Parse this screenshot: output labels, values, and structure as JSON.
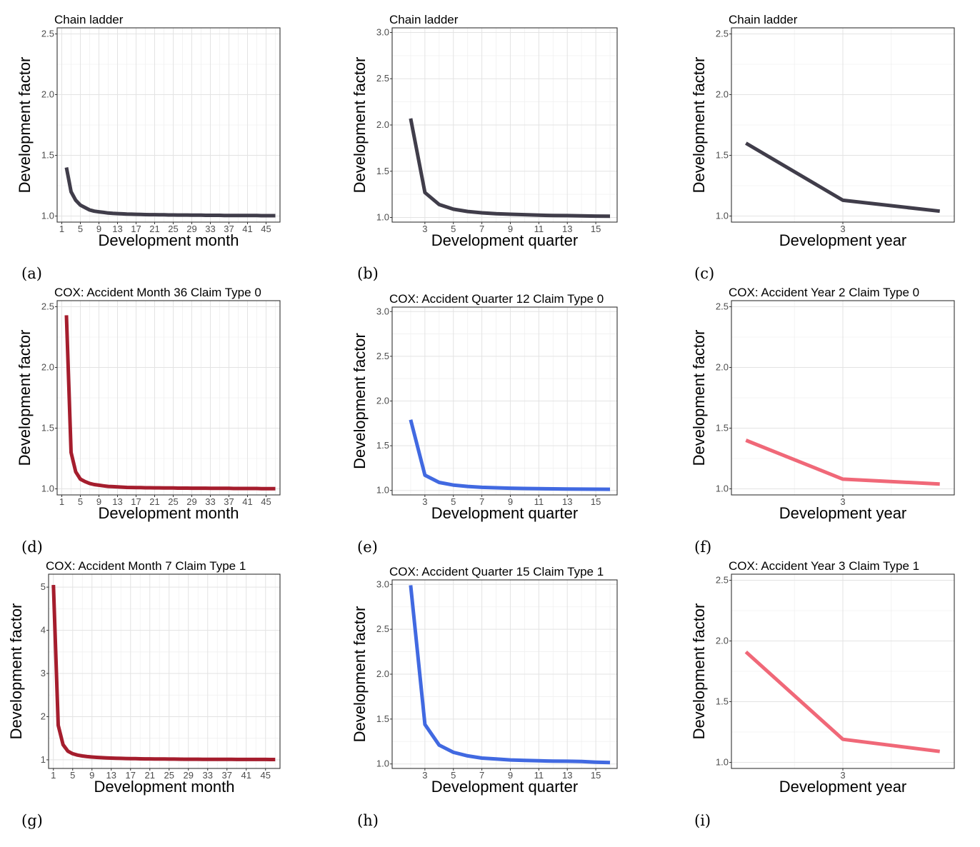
{
  "chart_data": [
    {
      "type": "line",
      "panel_caption": "(a)",
      "title": "Chain ladder",
      "xlabel": "Development month",
      "ylabel": "Development factor",
      "xlim": [
        0,
        48
      ],
      "ylim": [
        0.95,
        2.55
      ],
      "xticks": [
        1,
        5,
        9,
        13,
        17,
        21,
        25,
        29,
        33,
        37,
        41,
        45
      ],
      "yticks": [
        1.0,
        1.5,
        2.0,
        2.5
      ],
      "ytick_labels": [
        "1.0",
        "1.5",
        "2.0",
        "2.5"
      ],
      "color": "#403d4a",
      "grid": true,
      "x": [
        2,
        3,
        4,
        5,
        6,
        7,
        8,
        9,
        10,
        11,
        12,
        13,
        14,
        15,
        16,
        17,
        18,
        19,
        20,
        21,
        22,
        23,
        24,
        25,
        26,
        27,
        28,
        29,
        30,
        31,
        32,
        33,
        34,
        35,
        36,
        37,
        38,
        39,
        40,
        41,
        42,
        43,
        44,
        45,
        46,
        47
      ],
      "y": [
        1.4,
        1.2,
        1.13,
        1.09,
        1.07,
        1.05,
        1.04,
        1.035,
        1.03,
        1.025,
        1.022,
        1.02,
        1.018,
        1.016,
        1.015,
        1.014,
        1.013,
        1.012,
        1.011,
        1.011,
        1.01,
        1.01,
        1.009,
        1.009,
        1.008,
        1.008,
        1.008,
        1.007,
        1.007,
        1.007,
        1.006,
        1.006,
        1.006,
        1.006,
        1.005,
        1.005,
        1.005,
        1.005,
        1.004,
        1.004,
        1.004,
        1.004,
        1.003,
        1.003,
        1.003,
        1.003
      ]
    },
    {
      "type": "line",
      "panel_caption": "(b)",
      "title": "Chain ladder",
      "xlabel": "Development quarter",
      "ylabel": "Development factor",
      "xlim": [
        0.7,
        16.5
      ],
      "ylim": [
        0.95,
        3.05
      ],
      "xticks": [
        3,
        5,
        7,
        9,
        11,
        13,
        15
      ],
      "yticks": [
        1.0,
        1.5,
        2.0,
        2.5,
        3.0
      ],
      "ytick_labels": [
        "1.0",
        "1.5",
        "2.0",
        "2.5",
        "3.0"
      ],
      "color": "#403d4a",
      "grid": true,
      "x": [
        2,
        3,
        4,
        5,
        6,
        7,
        8,
        9,
        10,
        11,
        12,
        13,
        14,
        15,
        16
      ],
      "y": [
        2.07,
        1.27,
        1.14,
        1.09,
        1.065,
        1.05,
        1.04,
        1.035,
        1.03,
        1.025,
        1.022,
        1.02,
        1.018,
        1.015,
        1.014
      ]
    },
    {
      "type": "line",
      "panel_caption": "(c)",
      "title": "Chain ladder",
      "xlabel": "Development year",
      "ylabel": "Development factor",
      "xlim": [
        1.85,
        4.15
      ],
      "ylim": [
        0.95,
        2.55
      ],
      "xticks": [
        3
      ],
      "yticks": [
        1.0,
        1.5,
        2.0,
        2.5
      ],
      "ytick_labels": [
        "1.0",
        "1.5",
        "2.0",
        "2.5"
      ],
      "color": "#403d4a",
      "grid": true,
      "x": [
        2,
        3,
        4
      ],
      "y": [
        1.6,
        1.13,
        1.04
      ]
    },
    {
      "type": "line",
      "panel_caption": "(d)",
      "title": "COX: Accident Month 36 Claim Type 0",
      "xlabel": "Development month",
      "ylabel": "Development factor",
      "xlim": [
        0,
        48
      ],
      "ylim": [
        0.95,
        2.55
      ],
      "xticks": [
        1,
        5,
        9,
        13,
        17,
        21,
        25,
        29,
        33,
        37,
        41,
        45
      ],
      "yticks": [
        1.0,
        1.5,
        2.0,
        2.5
      ],
      "ytick_labels": [
        "1.0",
        "1.5",
        "2.0",
        "2.5"
      ],
      "color": "#a51d2d",
      "grid": true,
      "x": [
        2,
        3,
        4,
        5,
        6,
        7,
        8,
        9,
        10,
        11,
        12,
        13,
        14,
        15,
        16,
        17,
        18,
        19,
        20,
        21,
        22,
        23,
        24,
        25,
        26,
        27,
        28,
        29,
        30,
        31,
        32,
        33,
        34,
        35,
        36,
        37,
        38,
        39,
        40,
        41,
        42,
        43,
        44,
        45,
        46,
        47
      ],
      "y": [
        2.43,
        1.3,
        1.14,
        1.08,
        1.06,
        1.045,
        1.035,
        1.03,
        1.025,
        1.02,
        1.018,
        1.016,
        1.014,
        1.012,
        1.011,
        1.01,
        1.01,
        1.009,
        1.009,
        1.008,
        1.008,
        1.007,
        1.007,
        1.007,
        1.006,
        1.006,
        1.006,
        1.005,
        1.005,
        1.005,
        1.005,
        1.004,
        1.004,
        1.004,
        1.004,
        1.004,
        1.003,
        1.003,
        1.003,
        1.003,
        1.003,
        1.003,
        1.002,
        1.002,
        1.002,
        1.002
      ]
    },
    {
      "type": "line",
      "panel_caption": "(e)",
      "title": "COX: Accident Quarter 12 Claim Type 0",
      "xlabel": "Development quarter",
      "ylabel": "Development factor",
      "xlim": [
        0.7,
        16.5
      ],
      "ylim": [
        0.95,
        3.05
      ],
      "xticks": [
        3,
        5,
        7,
        9,
        11,
        13,
        15
      ],
      "yticks": [
        1.0,
        1.5,
        2.0,
        2.5,
        3.0
      ],
      "ytick_labels": [
        "1.0",
        "1.5",
        "2.0",
        "2.5",
        "3.0"
      ],
      "color": "#4169e1",
      "grid": true,
      "x": [
        2,
        3,
        4,
        5,
        6,
        7,
        8,
        9,
        10,
        11,
        12,
        13,
        14,
        15,
        16
      ],
      "y": [
        1.79,
        1.17,
        1.09,
        1.06,
        1.045,
        1.035,
        1.03,
        1.025,
        1.022,
        1.02,
        1.018,
        1.016,
        1.015,
        1.014,
        1.013
      ]
    },
    {
      "type": "line",
      "panel_caption": "(f)",
      "title": "COX: Accident Year 2 Claim Type 0",
      "xlabel": "Development year",
      "ylabel": "Development factor",
      "xlim": [
        1.85,
        4.15
      ],
      "ylim": [
        0.95,
        2.55
      ],
      "xticks": [
        3
      ],
      "yticks": [
        1.0,
        1.5,
        2.0,
        2.5
      ],
      "ytick_labels": [
        "1.0",
        "1.5",
        "2.0",
        "2.5"
      ],
      "color": "#f06878",
      "grid": true,
      "x": [
        2,
        3,
        4
      ],
      "y": [
        1.4,
        1.08,
        1.04
      ]
    },
    {
      "type": "line",
      "panel_caption": "(g)",
      "title": "COX: Accident Month 7 Claim Type 1",
      "xlabel": "Development month",
      "ylabel": "Development factor",
      "xlim": [
        0,
        48
      ],
      "ylim": [
        0.8,
        5.3
      ],
      "xticks": [
        1,
        5,
        9,
        13,
        17,
        21,
        25,
        29,
        33,
        37,
        41,
        45
      ],
      "yticks": [
        1,
        2,
        3,
        4,
        5
      ],
      "ytick_labels": [
        "1",
        "2",
        "3",
        "4",
        "5"
      ],
      "color": "#a51d2d",
      "grid": true,
      "x": [
        1,
        2,
        3,
        4,
        5,
        6,
        7,
        8,
        9,
        10,
        11,
        12,
        13,
        14,
        15,
        16,
        17,
        18,
        19,
        20,
        21,
        22,
        23,
        24,
        25,
        26,
        27,
        28,
        29,
        30,
        31,
        32,
        33,
        34,
        35,
        36,
        37,
        38,
        39,
        40,
        41,
        42,
        43,
        44,
        45,
        46,
        47
      ],
      "y": [
        5.05,
        1.8,
        1.35,
        1.2,
        1.14,
        1.11,
        1.09,
        1.075,
        1.065,
        1.057,
        1.05,
        1.045,
        1.04,
        1.036,
        1.033,
        1.03,
        1.028,
        1.026,
        1.024,
        1.022,
        1.021,
        1.02,
        1.019,
        1.018,
        1.017,
        1.016,
        1.015,
        1.014,
        1.014,
        1.013,
        1.013,
        1.012,
        1.012,
        1.011,
        1.011,
        1.01,
        1.01,
        1.01,
        1.009,
        1.009,
        1.009,
        1.008,
        1.008,
        1.008,
        1.008,
        1.007,
        1.007
      ]
    },
    {
      "type": "line",
      "panel_caption": "(h)",
      "title": "COX: Accident Quarter 15 Claim Type 1",
      "xlabel": "Development quarter",
      "ylabel": "Development factor",
      "xlim": [
        0.7,
        16.5
      ],
      "ylim": [
        0.95,
        3.05
      ],
      "xticks": [
        3,
        5,
        7,
        9,
        11,
        13,
        15
      ],
      "yticks": [
        1.0,
        1.5,
        2.0,
        2.5,
        3.0
      ],
      "ytick_labels": [
        "1.0",
        "1.5",
        "2.0",
        "2.5",
        "3.0"
      ],
      "color": "#4169e1",
      "grid": true,
      "x": [
        2,
        3,
        4,
        5,
        6,
        7,
        8,
        9,
        10,
        11,
        12,
        13,
        14,
        15,
        16
      ],
      "y": [
        2.99,
        1.44,
        1.21,
        1.13,
        1.09,
        1.065,
        1.055,
        1.045,
        1.04,
        1.035,
        1.032,
        1.03,
        1.027,
        1.02,
        1.015
      ]
    },
    {
      "type": "line",
      "panel_caption": "(i)",
      "title": "COX: Accident Year 3 Claim Type 1",
      "xlabel": "Development year",
      "ylabel": "Development factor",
      "xlim": [
        1.85,
        4.15
      ],
      "ylim": [
        0.95,
        2.55
      ],
      "xticks": [
        3
      ],
      "yticks": [
        1.0,
        1.5,
        2.0,
        2.5
      ],
      "ytick_labels": [
        "1.0",
        "1.5",
        "2.0",
        "2.5"
      ],
      "color": "#f06878",
      "grid": true,
      "x": [
        2,
        3,
        4
      ],
      "y": [
        1.91,
        1.19,
        1.09
      ]
    }
  ]
}
